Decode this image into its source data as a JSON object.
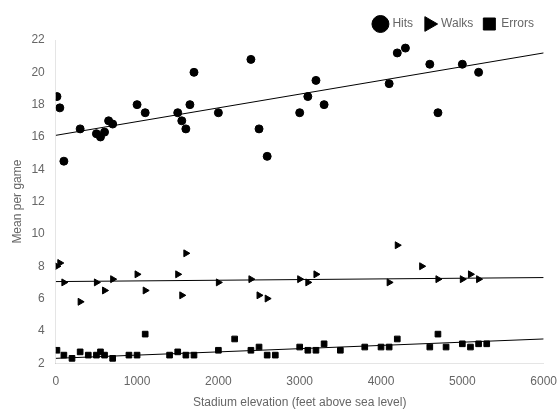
{
  "chart_data": {
    "type": "scatter",
    "xlabel": "Stadium elevation (feet above sea level)",
    "ylabel": "Mean per game",
    "xlim": [
      0,
      6000
    ],
    "ylim": [
      2,
      22
    ],
    "xticks": [
      0,
      1000,
      2000,
      3000,
      4000,
      5000,
      6000
    ],
    "yticks": [
      2,
      4,
      6,
      8,
      10,
      12,
      14,
      16,
      18,
      20,
      22
    ],
    "grid": false,
    "legend": "upper right",
    "series": [
      {
        "name": "Hits",
        "type": "scatter",
        "marker": "circle",
        "color": "black",
        "x": [
          15,
          50,
          100,
          300,
          500,
          550,
          600,
          650,
          700,
          1000,
          1100,
          1500,
          1550,
          1600,
          1650,
          1700,
          2000,
          2400,
          2500,
          2600,
          3000,
          3100,
          3200,
          3300,
          4100,
          4200,
          4300,
          4600,
          4700,
          5000,
          5200
        ],
        "values": [
          18.5,
          17.8,
          14.5,
          16.5,
          16.2,
          16.0,
          16.3,
          17.0,
          16.8,
          18.0,
          17.5,
          17.5,
          17.0,
          16.5,
          18.0,
          20.0,
          17.5,
          20.8,
          16.5,
          14.8,
          17.5,
          18.5,
          19.5,
          18.0,
          19.3,
          21.2,
          21.5,
          20.5,
          17.5,
          20.5,
          20.0
        ]
      },
      {
        "name": "Walks",
        "type": "scatter",
        "marker": "triangle-right",
        "color": "black",
        "x": [
          15,
          50,
          100,
          300,
          500,
          600,
          700,
          1000,
          1100,
          1500,
          1550,
          1600,
          2000,
          2400,
          2500,
          2600,
          3000,
          3100,
          3200,
          4100,
          4200,
          4500,
          4700,
          5000,
          5100,
          5200
        ],
        "values": [
          8.0,
          8.2,
          7.0,
          5.8,
          7.0,
          6.5,
          7.2,
          7.5,
          6.5,
          7.5,
          6.2,
          8.8,
          7.0,
          7.2,
          6.2,
          6.0,
          7.2,
          7.0,
          7.5,
          7.0,
          9.3,
          8.0,
          7.2,
          7.2,
          7.5,
          7.2
        ]
      },
      {
        "name": "Errors",
        "type": "scatter",
        "marker": "square",
        "color": "black",
        "x": [
          15,
          100,
          200,
          300,
          400,
          500,
          550,
          600,
          700,
          900,
          1000,
          1100,
          1400,
          1500,
          1600,
          1700,
          2000,
          2200,
          2400,
          2500,
          2600,
          2700,
          3000,
          3100,
          3200,
          3300,
          3500,
          3800,
          4000,
          4100,
          4200,
          4600,
          4700,
          4800,
          5000,
          5100,
          5200,
          5300
        ],
        "values": [
          2.8,
          2.5,
          2.3,
          2.7,
          2.5,
          2.5,
          2.7,
          2.5,
          2.3,
          2.5,
          2.5,
          3.8,
          2.5,
          2.7,
          2.5,
          2.5,
          2.8,
          3.5,
          2.8,
          3.0,
          2.5,
          2.5,
          3.0,
          2.8,
          2.8,
          3.2,
          2.8,
          3.0,
          3.0,
          3.0,
          3.5,
          3.0,
          3.8,
          3.0,
          3.2,
          3.0,
          3.2,
          3.2
        ]
      },
      {
        "type": "line",
        "color": "black",
        "x": [
          0,
          6000
        ],
        "values": [
          16.1,
          21.2
        ]
      },
      {
        "type": "line",
        "color": "black",
        "x": [
          0,
          6000
        ],
        "values": [
          7.05,
          7.3
        ]
      },
      {
        "type": "line",
        "color": "black",
        "x": [
          0,
          6000
        ],
        "values": [
          2.3,
          3.5
        ]
      }
    ]
  }
}
